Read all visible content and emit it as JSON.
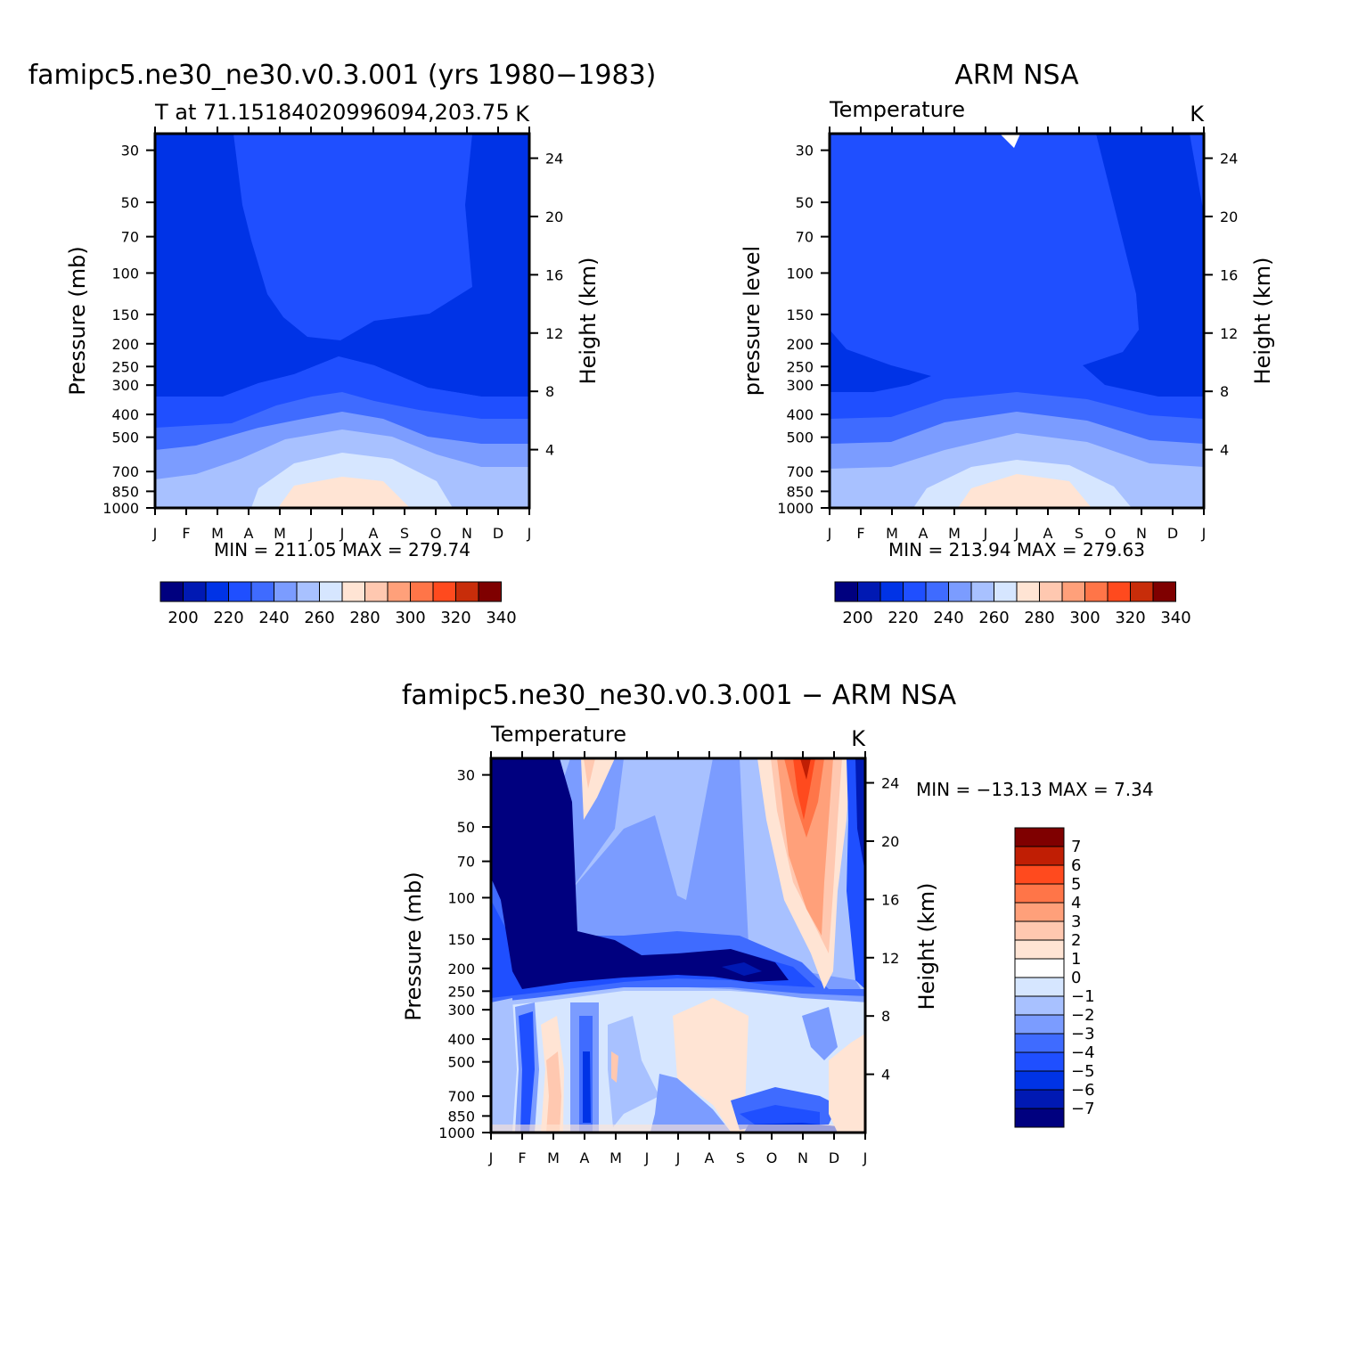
{
  "panels": {
    "model": {
      "title": "famipc5.ne30_ne30.v0.3.001 (yrs 1980−1983)",
      "subtitle_left": "T at 71.15184020996094,203.75",
      "subtitle_right": "K",
      "ylabel": "Pressure  (mb)",
      "ylabel_right": "Height  (km)",
      "minmax": "MIN  =  211.05  MAX  =  279.74"
    },
    "obs": {
      "title": "ARM NSA",
      "subtitle_left": "Temperature",
      "subtitle_right": "K",
      "ylabel": "pressure  level",
      "ylabel_right": "Height  (km)",
      "minmax": "MIN  =  213.94  MAX  =  279.63"
    },
    "diff": {
      "title": "famipc5.ne30_ne30.v0.3.001  −  ARM NSA",
      "subtitle_left": "Temperature",
      "subtitle_right": "K",
      "ylabel": "Pressure  (mb)",
      "ylabel_right": "Height  (km)",
      "minmax": "MIN  =  −13.13  MAX  =     7.34"
    }
  },
  "chart_data": [
    {
      "type": "heatmap",
      "name": "model",
      "x_ticks": [
        "J",
        "F",
        "M",
        "A",
        "M",
        "J",
        "J",
        "A",
        "S",
        "O",
        "N",
        "D",
        "J"
      ],
      "y_ticks": [
        "30",
        "50",
        "70",
        "100",
        "150",
        "200",
        "250",
        "300",
        "400",
        "500",
        "700",
        "850",
        "1000"
      ],
      "y_ticks_right": [
        "24",
        "20",
        "16",
        "12",
        "8",
        "4"
      ],
      "colorbar_ticks": [
        "200",
        "220",
        "240",
        "260",
        "280",
        "300",
        "320",
        "340"
      ],
      "colorbar_colors": [
        "#00007f",
        "#0019b3",
        "#0033e6",
        "#1f4fff",
        "#3f6bff",
        "#7b9cff",
        "#a8c1ff",
        "#d6e6ff",
        "#ffe4d4",
        "#ffc8b0",
        "#ffa07a",
        "#ff7548",
        "#ff4a1e",
        "#c82d0a",
        "#7f0000"
      ],
      "colorbar_levels": [
        200,
        210,
        220,
        230,
        240,
        250,
        260,
        270,
        280,
        290,
        300,
        310,
        320,
        330,
        340
      ],
      "min": 211.05,
      "max": 279.74
    },
    {
      "type": "heatmap",
      "name": "obs",
      "x_ticks": [
        "J",
        "F",
        "M",
        "A",
        "M",
        "J",
        "J",
        "A",
        "S",
        "O",
        "N",
        "D",
        "J"
      ],
      "y_ticks": [
        "30",
        "50",
        "70",
        "100",
        "150",
        "200",
        "250",
        "300",
        "400",
        "500",
        "700",
        "850",
        "1000"
      ],
      "y_ticks_right": [
        "24",
        "20",
        "16",
        "12",
        "8",
        "4"
      ],
      "colorbar_ticks": [
        "200",
        "220",
        "240",
        "260",
        "280",
        "300",
        "320",
        "340"
      ],
      "colorbar_colors": [
        "#00007f",
        "#0019b3",
        "#0033e6",
        "#1f4fff",
        "#3f6bff",
        "#7b9cff",
        "#a8c1ff",
        "#d6e6ff",
        "#ffe4d4",
        "#ffc8b0",
        "#ffa07a",
        "#ff7548",
        "#ff4a1e",
        "#c82d0a",
        "#7f0000"
      ],
      "colorbar_levels": [
        200,
        210,
        220,
        230,
        240,
        250,
        260,
        270,
        280,
        290,
        300,
        310,
        320,
        330,
        340
      ],
      "min": 213.94,
      "max": 279.63
    },
    {
      "type": "heatmap",
      "name": "diff",
      "x_ticks": [
        "J",
        "F",
        "M",
        "A",
        "M",
        "J",
        "J",
        "A",
        "S",
        "O",
        "N",
        "D",
        "J"
      ],
      "y_ticks": [
        "30",
        "50",
        "70",
        "100",
        "150",
        "200",
        "250",
        "300",
        "400",
        "500",
        "700",
        "850",
        "1000"
      ],
      "y_ticks_right": [
        "24",
        "20",
        "16",
        "12",
        "8",
        "4"
      ],
      "colorbar_ticks": [
        "7",
        "6",
        "5",
        "4",
        "3",
        "2",
        "1",
        "0",
        "−1",
        "−2",
        "−3",
        "−4",
        "−5",
        "−6",
        "−7"
      ],
      "colorbar_colors": [
        "#7f0000",
        "#c01e04",
        "#ff4a1e",
        "#ff7548",
        "#ffa07a",
        "#ffc8b0",
        "#ffe4d4",
        "#ffffff",
        "#d6e6ff",
        "#a8c1ff",
        "#7b9cff",
        "#3f6bff",
        "#1f4fff",
        "#0033e6",
        "#0019b3",
        "#00007f"
      ],
      "min": -13.13,
      "max": 7.34
    }
  ]
}
